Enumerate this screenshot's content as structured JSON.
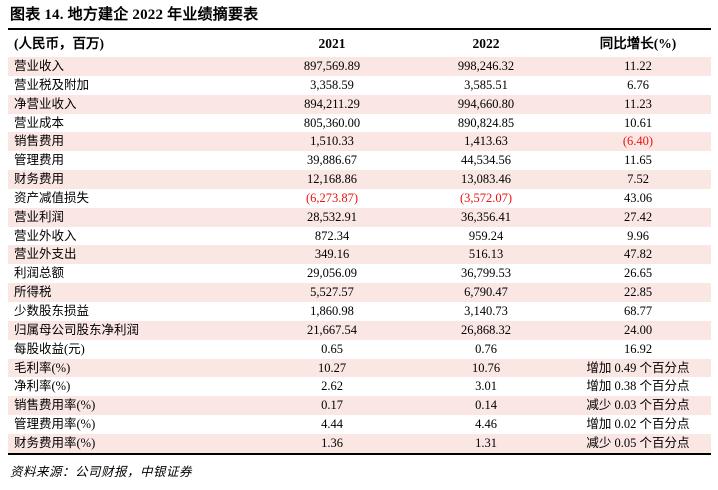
{
  "title": "图表 14. 地方建企 2022 年业绩摘要表",
  "table": {
    "headers": [
      "(人民币，百万)",
      "2021",
      "2022",
      "同比增长(%)"
    ],
    "rows": [
      [
        "营业收入",
        "897,569.89",
        "998,246.32",
        "11.22"
      ],
      [
        "营业税及附加",
        "3,358.59",
        "3,585.51",
        "6.76"
      ],
      [
        "净营业收入",
        "894,211.29",
        "994,660.80",
        "11.23"
      ],
      [
        "营业成本",
        "805,360.00",
        "890,824.85",
        "10.61"
      ],
      [
        "销售费用",
        "1,510.33",
        "1,413.63",
        "(6.40)"
      ],
      [
        "管理费用",
        "39,886.67",
        "44,534.56",
        "11.65"
      ],
      [
        "财务费用",
        "12,168.86",
        "13,083.46",
        "7.52"
      ],
      [
        "资产减值损失",
        "(6,273.87)",
        "(3,572.07)",
        "43.06"
      ],
      [
        "营业利润",
        "28,532.91",
        "36,356.41",
        "27.42"
      ],
      [
        "营业外收入",
        "872.34",
        "959.24",
        "9.96"
      ],
      [
        "营业外支出",
        "349.16",
        "516.13",
        "47.82"
      ],
      [
        "利润总额",
        "29,056.09",
        "36,799.53",
        "26.65"
      ],
      [
        "所得税",
        "5,527.57",
        "6,790.47",
        "22.85"
      ],
      [
        "少数股东损益",
        "1,860.98",
        "3,140.73",
        "68.77"
      ],
      [
        "归属母公司股东净利润",
        "21,667.54",
        "26,868.32",
        "24.00"
      ],
      [
        "每股收益(元)",
        "0.65",
        "0.76",
        "16.92"
      ],
      [
        "毛利率(%)",
        "10.27",
        "10.76",
        "增加 0.49 个百分点"
      ],
      [
        "净利率(%)",
        "2.62",
        "3.01",
        "增加 0.38 个百分点"
      ],
      [
        "销售费用率(%)",
        "0.17",
        "0.14",
        "减少 0.03 个百分点"
      ],
      [
        "管理费用率(%)",
        "4.44",
        "4.46",
        "增加 0.02 个百分点"
      ],
      [
        "财务费用率(%)",
        "1.36",
        "1.31",
        "减少 0.05 个百分点"
      ]
    ]
  },
  "footer": {
    "source": "资料来源：公司财报，中银证券"
  },
  "colors": {
    "row_highlight": "#fae7e4",
    "negative": "#ee1111",
    "rule": "#000000"
  }
}
